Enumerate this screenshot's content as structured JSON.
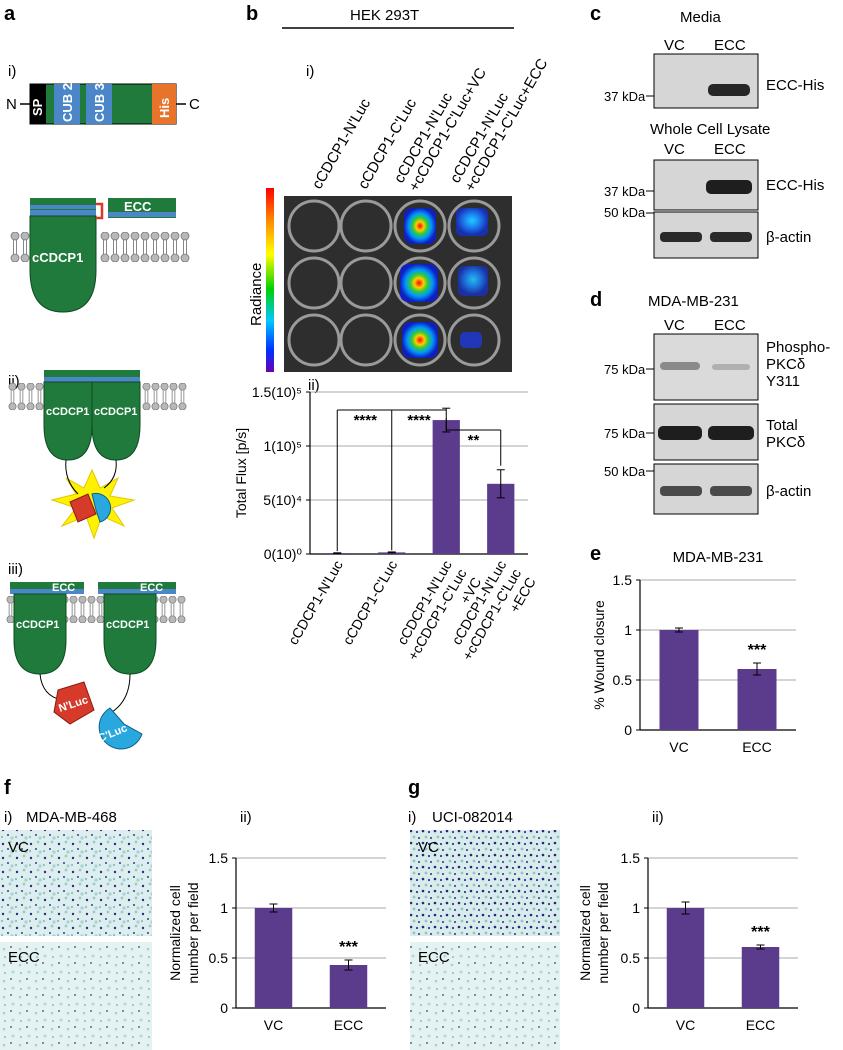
{
  "panel_letters": {
    "a": "a",
    "b": "b",
    "c": "c",
    "d": "d",
    "e": "e",
    "f": "f",
    "g": "g"
  },
  "panel_a": {
    "sub_i": "i)",
    "sub_ii": "ii)",
    "sub_iii": "iii)",
    "n_term": "N",
    "c_term": "C",
    "domains": {
      "sp": "SP",
      "cub2": "CUB 2",
      "cub3": "CUB 3",
      "his": "His"
    },
    "ecc": "ECC",
    "protein": "cCDCP1",
    "nluc": "N'Luc",
    "cluc": "C'Luc",
    "colors": {
      "green": "#1f7a3c",
      "blue": "#4a86c8",
      "orange": "#e8732a",
      "red": "#d63a2a",
      "cyan": "#29a8df",
      "yellow": "#fff200"
    }
  },
  "panel_b": {
    "cell_line": "HEK 293T",
    "sub_i": "i)",
    "sub_ii": "ii)",
    "column_labels": [
      [
        "cCDCP1-N'Luc"
      ],
      [
        "cCDCP1-C'Luc"
      ],
      [
        "cCDCP1-N'Luc",
        "+cCDCP1-C'Luc+VC"
      ],
      [
        "cCDCP1-N'Luc",
        "+cCDCP1-C'Luc+ECC"
      ]
    ],
    "radiance_label": "Radiance",
    "significance": [
      "****",
      "****",
      "**"
    ]
  },
  "panel_c": {
    "media_title": "Media",
    "lysate_title": "Whole Cell Lysate",
    "lanes": [
      "VC",
      "ECC"
    ],
    "ladder_37": "37 kDa",
    "ladder_50": "50 kDa",
    "band_ecc_his": "ECC-His",
    "band_actin": "β-actin"
  },
  "panel_d": {
    "cell_line": "MDA-MB-231",
    "lanes": [
      "VC",
      "ECC"
    ],
    "ladder_75": "75 kDa",
    "ladder_50": "50 kDa",
    "phospho": [
      "Phospho-",
      "PKCδ",
      "Y311"
    ],
    "total": [
      "Total",
      "PKCδ"
    ],
    "actin": "β-actin"
  },
  "panel_f": {
    "sub_i": "i)",
    "sub_ii": "ii)",
    "cell_line": "MDA-MB-468",
    "img_vc": "VC",
    "img_ecc": "ECC"
  },
  "panel_g": {
    "sub_i": "i)",
    "sub_ii": "ii)",
    "cell_line": "UCI-082014",
    "img_vc": "VC",
    "img_ecc": "ECC"
  },
  "chart_data": [
    {
      "id": "b-ii",
      "type": "bar",
      "categories": [
        [
          "cCDCP1-N'Luc"
        ],
        [
          "cCDCP1-C'Luc"
        ],
        [
          "cCDCP1-N'Luc",
          "+cCDCP1-C'Luc",
          "+VC"
        ],
        [
          "cCDCP1-N'Luc",
          "+cCDCP1-C'Luc",
          "+ECC"
        ]
      ],
      "values": [
        800,
        1500,
        124000,
        65000
      ],
      "errors": [
        300,
        400,
        11000,
        13000
      ],
      "ylabel": "Total Flux [p/s]",
      "ylim": [
        0,
        150000
      ],
      "ytick_values": [
        0,
        50000,
        100000,
        150000
      ],
      "ytick_labels": [
        "0(10)⁰",
        "5(10)⁴",
        "1(10)⁵",
        "1.5(10)⁵"
      ],
      "significance": [
        "****",
        "****",
        "**"
      ],
      "grid": true,
      "color": "#5b3b8c"
    },
    {
      "id": "e",
      "type": "bar",
      "title": "MDA-MB-231",
      "categories": [
        "VC",
        "ECC"
      ],
      "values": [
        1.0,
        0.61
      ],
      "errors": [
        0.02,
        0.06
      ],
      "ylabel": "% Wound closure",
      "ylim": [
        0,
        1.5
      ],
      "ytick_values": [
        0,
        0.5,
        1,
        1.5
      ],
      "ytick_labels": [
        "0",
        "0.5",
        "1",
        "1.5"
      ],
      "annotation": "***",
      "grid": true,
      "color": "#5b3b8c"
    },
    {
      "id": "f-ii",
      "type": "bar",
      "categories": [
        "VC",
        "ECC"
      ],
      "values": [
        1.0,
        0.43
      ],
      "errors": [
        0.04,
        0.05
      ],
      "ylabel": [
        "Normalized cell",
        "number per field"
      ],
      "ylim": [
        0,
        1.5
      ],
      "ytick_values": [
        0,
        0.5,
        1,
        1.5
      ],
      "ytick_labels": [
        "0",
        "0.5",
        "1",
        "1.5"
      ],
      "annotation": "***",
      "grid": true,
      "color": "#5b3b8c"
    },
    {
      "id": "g-ii",
      "type": "bar",
      "categories": [
        "VC",
        "ECC"
      ],
      "values": [
        1.0,
        0.61
      ],
      "errors": [
        0.06,
        0.02
      ],
      "ylabel": [
        "Normalized cell",
        "number per field"
      ],
      "ylim": [
        0,
        1.5
      ],
      "ytick_values": [
        0,
        0.5,
        1,
        1.5
      ],
      "ytick_labels": [
        "0",
        "0.5",
        "1",
        "1.5"
      ],
      "annotation": "***",
      "grid": true,
      "color": "#5b3b8c"
    }
  ]
}
